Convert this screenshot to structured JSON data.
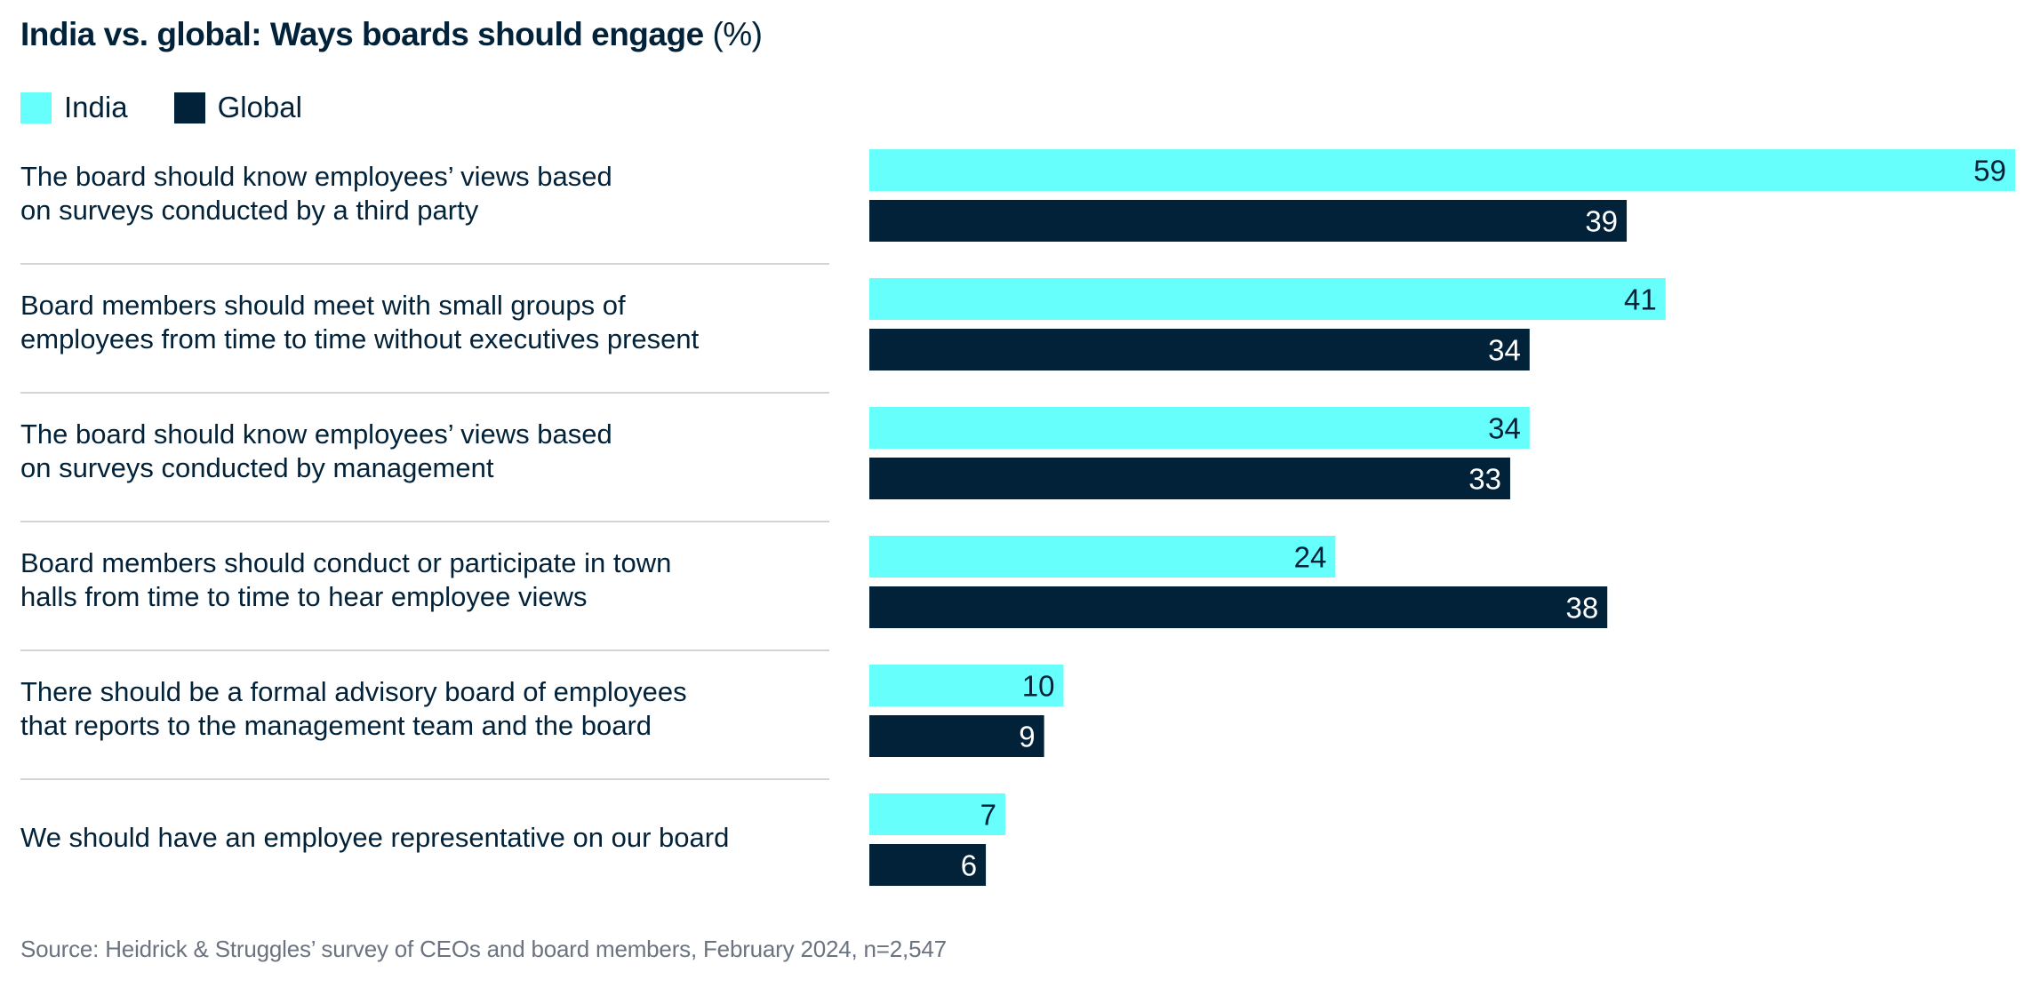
{
  "title": {
    "bold": "India vs. global: Ways boards should engage",
    "unit": "(%)"
  },
  "colors": {
    "india": "#66fffb",
    "global": "#022239",
    "text": "#022239",
    "separator": "#d4d4d4",
    "source": "#6b7380"
  },
  "legend": [
    {
      "label": "India",
      "color": "#66fffb"
    },
    {
      "label": "Global",
      "color": "#022239"
    }
  ],
  "source": "Source: Heidrick & Struggles’ survey of CEOs and board members, February 2024, n=2,547",
  "chart_data": {
    "type": "bar",
    "orientation": "horizontal",
    "title": "India vs. global: Ways boards should engage (%)",
    "xlabel": "",
    "ylabel": "",
    "xlim": [
      0,
      59
    ],
    "grid": false,
    "legend_position": "top-left",
    "categories": [
      [
        "The board should know employees’ views based",
        "on surveys conducted by a third party"
      ],
      [
        "Board members should meet with small groups of",
        "employees from time to time without executives present"
      ],
      [
        "The board should know employees’ views based",
        "on surveys conducted by management"
      ],
      [
        "Board members should conduct or participate in town",
        "halls from time to time to hear employee views"
      ],
      [
        "There should be a formal advisory board of employees",
        "that reports to the management team and the board"
      ],
      [
        "We should have an employee representative on our board"
      ]
    ],
    "series": [
      {
        "name": "India",
        "color": "#66fffb",
        "label_color": "#022239",
        "values": [
          59,
          41,
          34,
          24,
          10,
          7
        ]
      },
      {
        "name": "Global",
        "color": "#022239",
        "label_color": "#ffffff",
        "values": [
          39,
          34,
          33,
          38,
          9,
          6
        ]
      }
    ]
  }
}
